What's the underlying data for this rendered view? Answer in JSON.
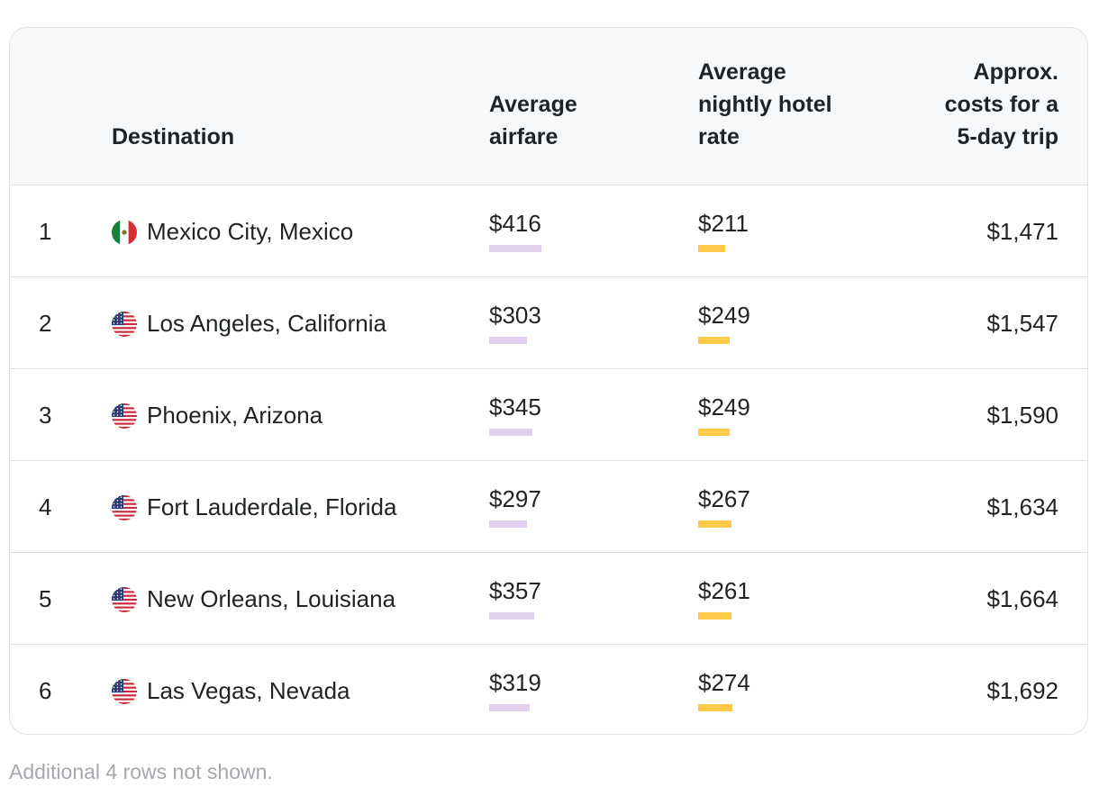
{
  "chart_data": {
    "type": "table",
    "columns": [
      "",
      "Destination",
      "Average\nairfare",
      "Average\nnightly hotel\nrate",
      "Approx.\ncosts for a\n5-day trip"
    ],
    "rows": [
      {
        "rank": "1",
        "flag_icon": "mexico-flag-icon",
        "destination": "Mexico City, Mexico",
        "airfare": 416,
        "airfare_label": "$416",
        "hotel": 211,
        "hotel_label": "$211",
        "total_label": "$1,471"
      },
      {
        "rank": "2",
        "flag_icon": "usa-flag-icon",
        "destination": "Los Angeles, California",
        "airfare": 303,
        "airfare_label": "$303",
        "hotel": 249,
        "hotel_label": "$249",
        "total_label": "$1,547"
      },
      {
        "rank": "3",
        "flag_icon": "usa-flag-icon",
        "destination": "Phoenix, Arizona",
        "airfare": 345,
        "airfare_label": "$345",
        "hotel": 249,
        "hotel_label": "$249",
        "total_label": "$1,590"
      },
      {
        "rank": "4",
        "flag_icon": "usa-flag-icon",
        "destination": "Fort Lauderdale, Florida",
        "airfare": 297,
        "airfare_label": "$297",
        "hotel": 267,
        "hotel_label": "$267",
        "total_label": "$1,634"
      },
      {
        "rank": "5",
        "flag_icon": "usa-flag-icon",
        "destination": "New Orleans, Louisiana",
        "airfare": 357,
        "airfare_label": "$357",
        "hotel": 261,
        "hotel_label": "$261",
        "total_label": "$1,664"
      },
      {
        "rank": "6",
        "flag_icon": "usa-flag-icon",
        "destination": "Las Vegas, Nevada",
        "airfare": 319,
        "airfare_label": "$319",
        "hotel": 274,
        "hotel_label": "$274",
        "total_label": "$1,692"
      }
    ],
    "colors": {
      "airfare_bar": "#e1d1ec",
      "hotel_bar": "#ffc94a"
    }
  },
  "footnote": "Additional 4 rows not shown."
}
